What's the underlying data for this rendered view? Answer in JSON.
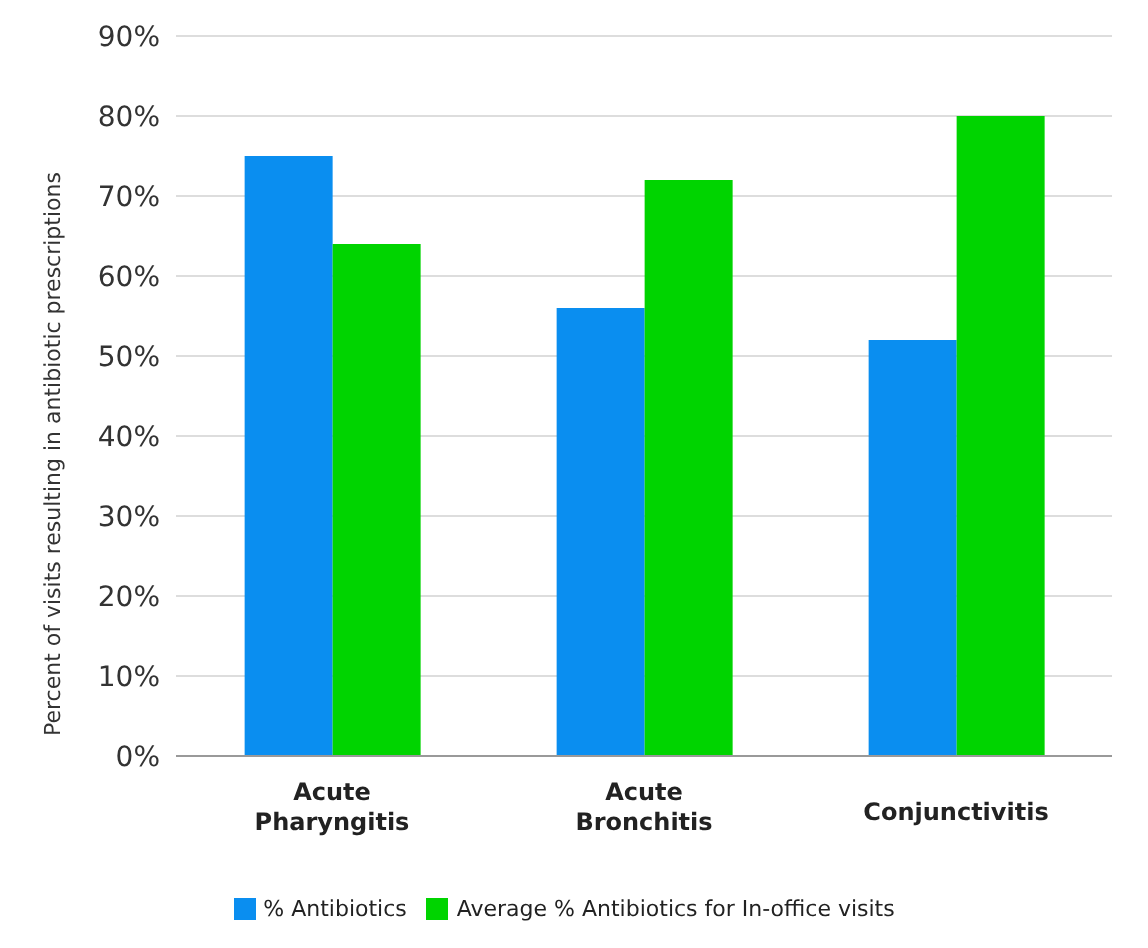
{
  "chart_data": {
    "type": "bar",
    "ylabel": "Percent of visits resulting in antibiotic prescriptions",
    "categories": [
      "Acute Pharyngitis",
      "Acute Bronchitis",
      "Conjunctivitis"
    ],
    "series": [
      {
        "name": "% Antibiotics",
        "color": "#0a8ef0",
        "values": [
          75,
          56,
          52
        ]
      },
      {
        "name": "Average % Antibiotics for In-office visits",
        "color": "#00d400",
        "values": [
          64,
          72,
          80
        ]
      }
    ],
    "ylim": [
      0,
      90
    ],
    "yticks": [
      {
        "value": 0,
        "label": "0%"
      },
      {
        "value": 10,
        "label": "10%"
      },
      {
        "value": 20,
        "label": "20%"
      },
      {
        "value": 30,
        "label": "30%"
      },
      {
        "value": 40,
        "label": "40%"
      },
      {
        "value": 50,
        "label": "50%"
      },
      {
        "value": 60,
        "label": "60%"
      },
      {
        "value": 70,
        "label": "70%"
      },
      {
        "value": 80,
        "label": "80%"
      },
      {
        "value": 90,
        "label": "90%"
      }
    ],
    "grid": "y",
    "legend": "bottom"
  }
}
